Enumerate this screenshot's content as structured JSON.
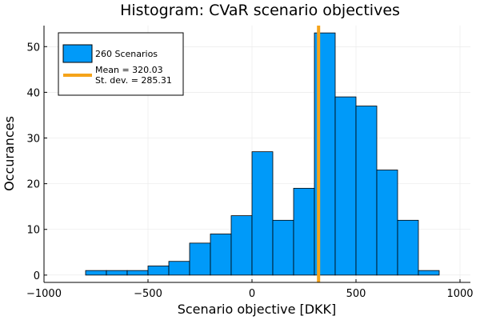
{
  "chart_data": {
    "type": "bar",
    "title": "Histogram: CVaR scenario objectives",
    "xlabel": "Scenario objective [DKK]",
    "ylabel": "Occurances",
    "xlim": [
      -1000,
      1050
    ],
    "ylim": [
      -1.6,
      54.6
    ],
    "grid": true,
    "legend_position": "top-left",
    "xticks": [
      -1000,
      -500,
      0,
      500,
      1000
    ],
    "xtick_labels": [
      "−1000",
      "−500",
      "0",
      "500",
      "1000"
    ],
    "yticks": [
      0,
      10,
      20,
      30,
      40,
      50
    ],
    "ytick_labels": [
      "0",
      "10",
      "20",
      "30",
      "40",
      "50"
    ],
    "bin_width": 100,
    "bins": [
      {
        "start": -800,
        "count": 1
      },
      {
        "start": -700,
        "count": 1
      },
      {
        "start": -600,
        "count": 1
      },
      {
        "start": -500,
        "count": 2
      },
      {
        "start": -400,
        "count": 3
      },
      {
        "start": -300,
        "count": 7
      },
      {
        "start": -200,
        "count": 9
      },
      {
        "start": -100,
        "count": 13
      },
      {
        "start": 0,
        "count": 27
      },
      {
        "start": 100,
        "count": 12
      },
      {
        "start": 200,
        "count": 19
      },
      {
        "start": 300,
        "count": 53
      },
      {
        "start": 400,
        "count": 39
      },
      {
        "start": 500,
        "count": 37
      },
      {
        "start": 600,
        "count": 23
      },
      {
        "start": 700,
        "count": 12
      },
      {
        "start": 800,
        "count": 1
      }
    ],
    "mean_line": {
      "x": 320.03
    },
    "series": [
      {
        "name": "260 Scenarios",
        "kind": "bars",
        "color": "#009af9",
        "edge_color": "#000000"
      },
      {
        "name": "Mean = 320.03\nSt. dev. = 285.31",
        "kind": "vline",
        "color": "#f5a31a"
      }
    ]
  }
}
